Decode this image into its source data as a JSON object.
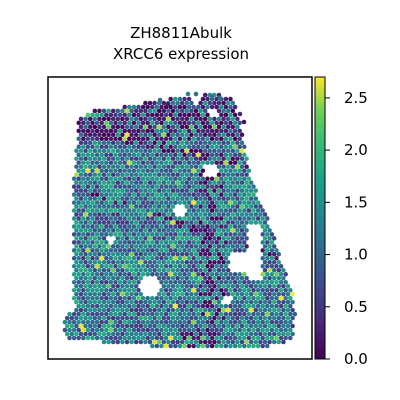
{
  "chart_data": {
    "type": "scatter",
    "title_lines": [
      "ZH8811Abulk",
      "XRCC6 expression"
    ],
    "xlabel": "",
    "ylabel": "",
    "colorbar": {
      "label": "",
      "range": [
        0.0,
        2.7
      ],
      "ticks": [
        0.0,
        0.5,
        1.0,
        1.5,
        2.0,
        2.5
      ],
      "tick_labels": [
        "0.0",
        "0.5",
        "1.0",
        "1.5",
        "2.0",
        "2.5"
      ],
      "colormap": "viridis"
    },
    "series": [
      {
        "spots_summary": "hexagonal spatial spots (Visium-like) colored by XRCC6 expression, values roughly 0.0-2.7, most values between 0.8 and 1.6, a dark low-expression band in the upper region",
        "mean_value": 1.1
      }
    ],
    "grid": false,
    "legend": "none"
  },
  "colors": {
    "viridis_low": "#440154",
    "viridis_mid": "#21918c",
    "viridis_high": "#fde725"
  }
}
